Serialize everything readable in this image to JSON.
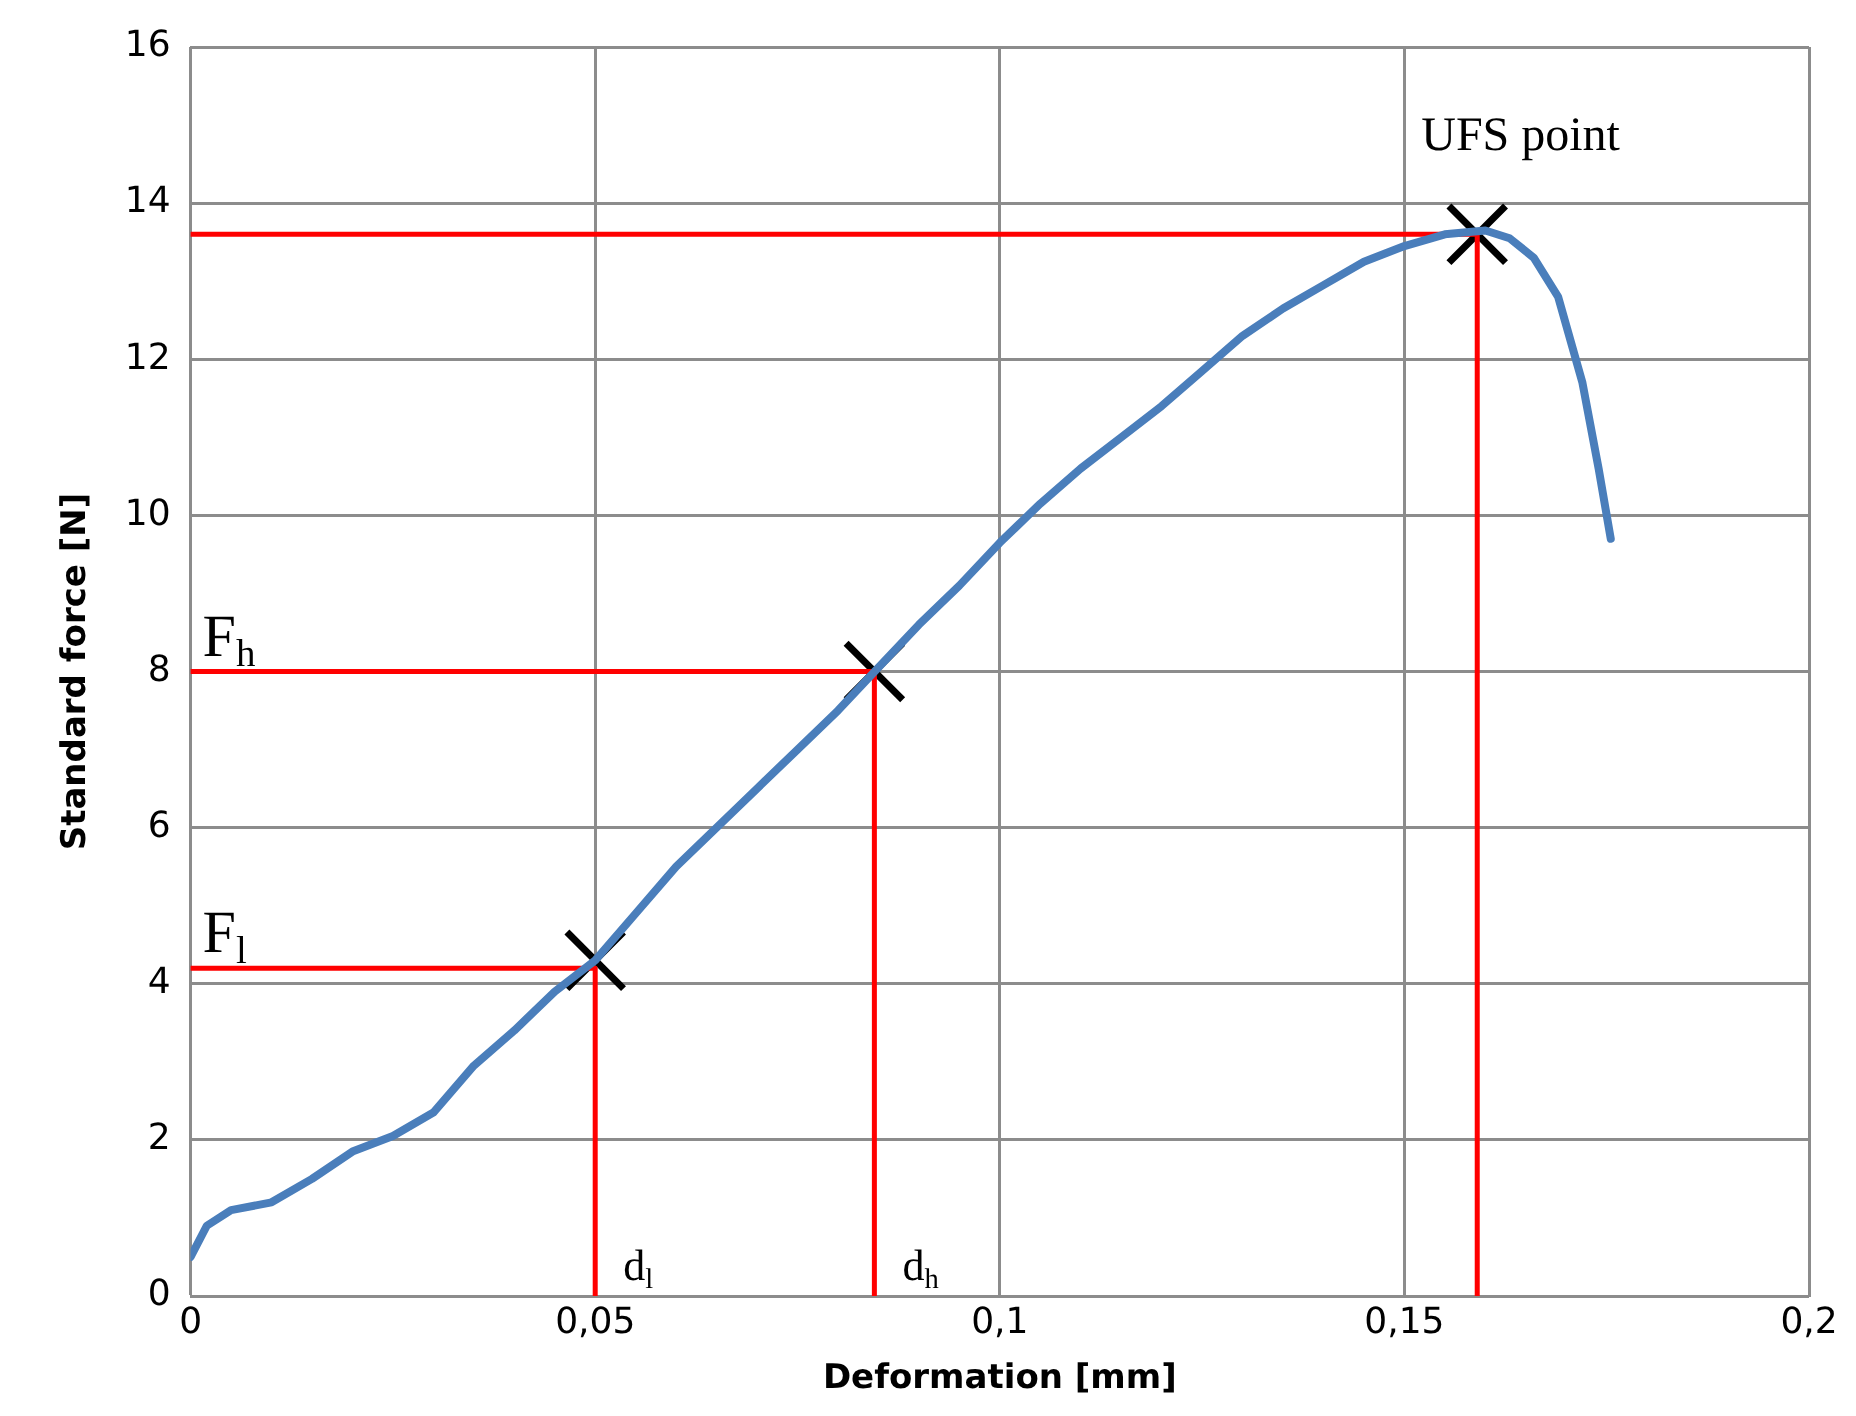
{
  "chart_data": {
    "type": "line",
    "xlabel": "Deformation [mm]",
    "ylabel": "Standard force [N]",
    "xlim": [
      0,
      0.2
    ],
    "xticks": [
      0,
      {
        "value": 0.05,
        "label": "0,05"
      },
      {
        "value": 0.1,
        "label": "0,1"
      },
      {
        "value": 0.15,
        "label": "0,15"
      },
      {
        "value": 0.2,
        "label": "0,2"
      }
    ],
    "ylim": [
      0,
      16
    ],
    "yticks": [
      0,
      2,
      4,
      6,
      8,
      10,
      12,
      14,
      16
    ],
    "grid": true,
    "legend": false,
    "series": [
      {
        "color": "#4a7ebb",
        "marker": "none",
        "x": [
          0,
          0.002,
          0.005,
          0.01,
          0.015,
          0.02,
          0.025,
          0.03,
          0.035,
          0.04,
          0.045,
          0.05,
          0.055,
          0.06,
          0.065,
          0.07,
          0.075,
          0.08,
          0.085,
          0.09,
          0.095,
          0.1,
          0.105,
          0.11,
          0.115,
          0.12,
          0.125,
          0.13,
          0.135,
          0.14,
          0.145,
          0.15,
          0.155,
          0.16,
          0.163,
          0.166,
          0.169,
          0.172,
          0.174,
          0.1755
        ],
        "values": [
          0.5,
          0.9,
          1.1,
          1.2,
          1.5,
          1.85,
          2.05,
          2.35,
          2.95,
          3.4,
          3.9,
          4.3,
          4.9,
          5.5,
          6.0,
          6.5,
          7.0,
          7.5,
          8.05,
          8.6,
          9.1,
          9.65,
          10.15,
          10.6,
          11.0,
          11.4,
          11.85,
          12.3,
          12.65,
          12.95,
          13.25,
          13.45,
          13.6,
          13.65,
          13.55,
          13.3,
          12.8,
          11.7,
          10.6,
          9.7
        ]
      },
      {
        "type": "line",
        "color": "#ff0000",
        "marker": "none",
        "x": [
          0,
          0.05,
          0.05
        ],
        "values": [
          4.2,
          4.2,
          0
        ]
      },
      {
        "type": "line",
        "color": "#ff0000",
        "marker": "none",
        "x": [
          0,
          0.0845,
          0.0845
        ],
        "values": [
          8,
          8,
          0
        ]
      },
      {
        "type": "line",
        "color": "#ff0000",
        "marker": "none",
        "x": [
          0,
          0.159,
          0.159
        ],
        "values": [
          13.6,
          13.6,
          0
        ]
      },
      {
        "type": "scatter",
        "color": "#000000",
        "marker": "cross",
        "x": [
          0.05,
          0.0845,
          0.159
        ],
        "values": [
          4.3,
          8,
          13.6
        ]
      }
    ],
    "annotations": [
      {
        "text": "F$_{l}$",
        "x": 0,
        "y": 4.2
      },
      {
        "text": "F$_{h}$",
        "x": 0,
        "y": 8
      },
      {
        "text": "d$_{l}$",
        "x": 0.05,
        "y": 0
      },
      {
        "text": "d$_{h}$",
        "x": 0.0845,
        "y": 0
      },
      {
        "text": "UFS point",
        "x": 0.159,
        "y": 13.6
      }
    ]
  }
}
